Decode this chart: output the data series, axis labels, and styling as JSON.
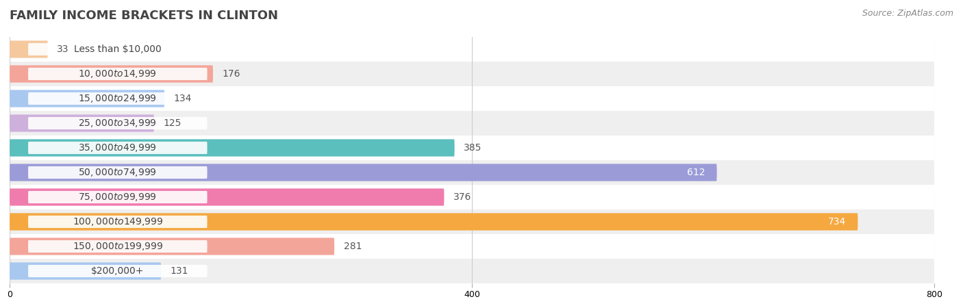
{
  "title": "FAMILY INCOME BRACKETS IN CLINTON",
  "source": "Source: ZipAtlas.com",
  "categories": [
    "Less than $10,000",
    "$10,000 to $14,999",
    "$15,000 to $24,999",
    "$25,000 to $34,999",
    "$35,000 to $49,999",
    "$50,000 to $74,999",
    "$75,000 to $99,999",
    "$100,000 to $149,999",
    "$150,000 to $199,999",
    "$200,000+"
  ],
  "values": [
    33,
    176,
    134,
    125,
    385,
    612,
    376,
    734,
    281,
    131
  ],
  "colors": [
    "#F5C89E",
    "#F4A59A",
    "#A8C8F0",
    "#CEB0DC",
    "#5BBFBE",
    "#9B9BD8",
    "#F07CAE",
    "#F5A840",
    "#F4A59A",
    "#A8C8F0"
  ],
  "xlim": [
    0,
    800
  ],
  "bar_height": 0.7,
  "background_color": "#f5f5f5",
  "row_bg_even": "#ffffff",
  "row_bg_odd": "#efefef",
  "title_color": "#444444",
  "label_color": "#444444",
  "value_color_inside": "#ffffff",
  "value_color_outside": "#555555",
  "title_fontsize": 13,
  "label_fontsize": 10,
  "value_fontsize": 10,
  "source_fontsize": 9,
  "xticks": [
    0,
    400,
    800
  ],
  "grid_color": "#cccccc"
}
